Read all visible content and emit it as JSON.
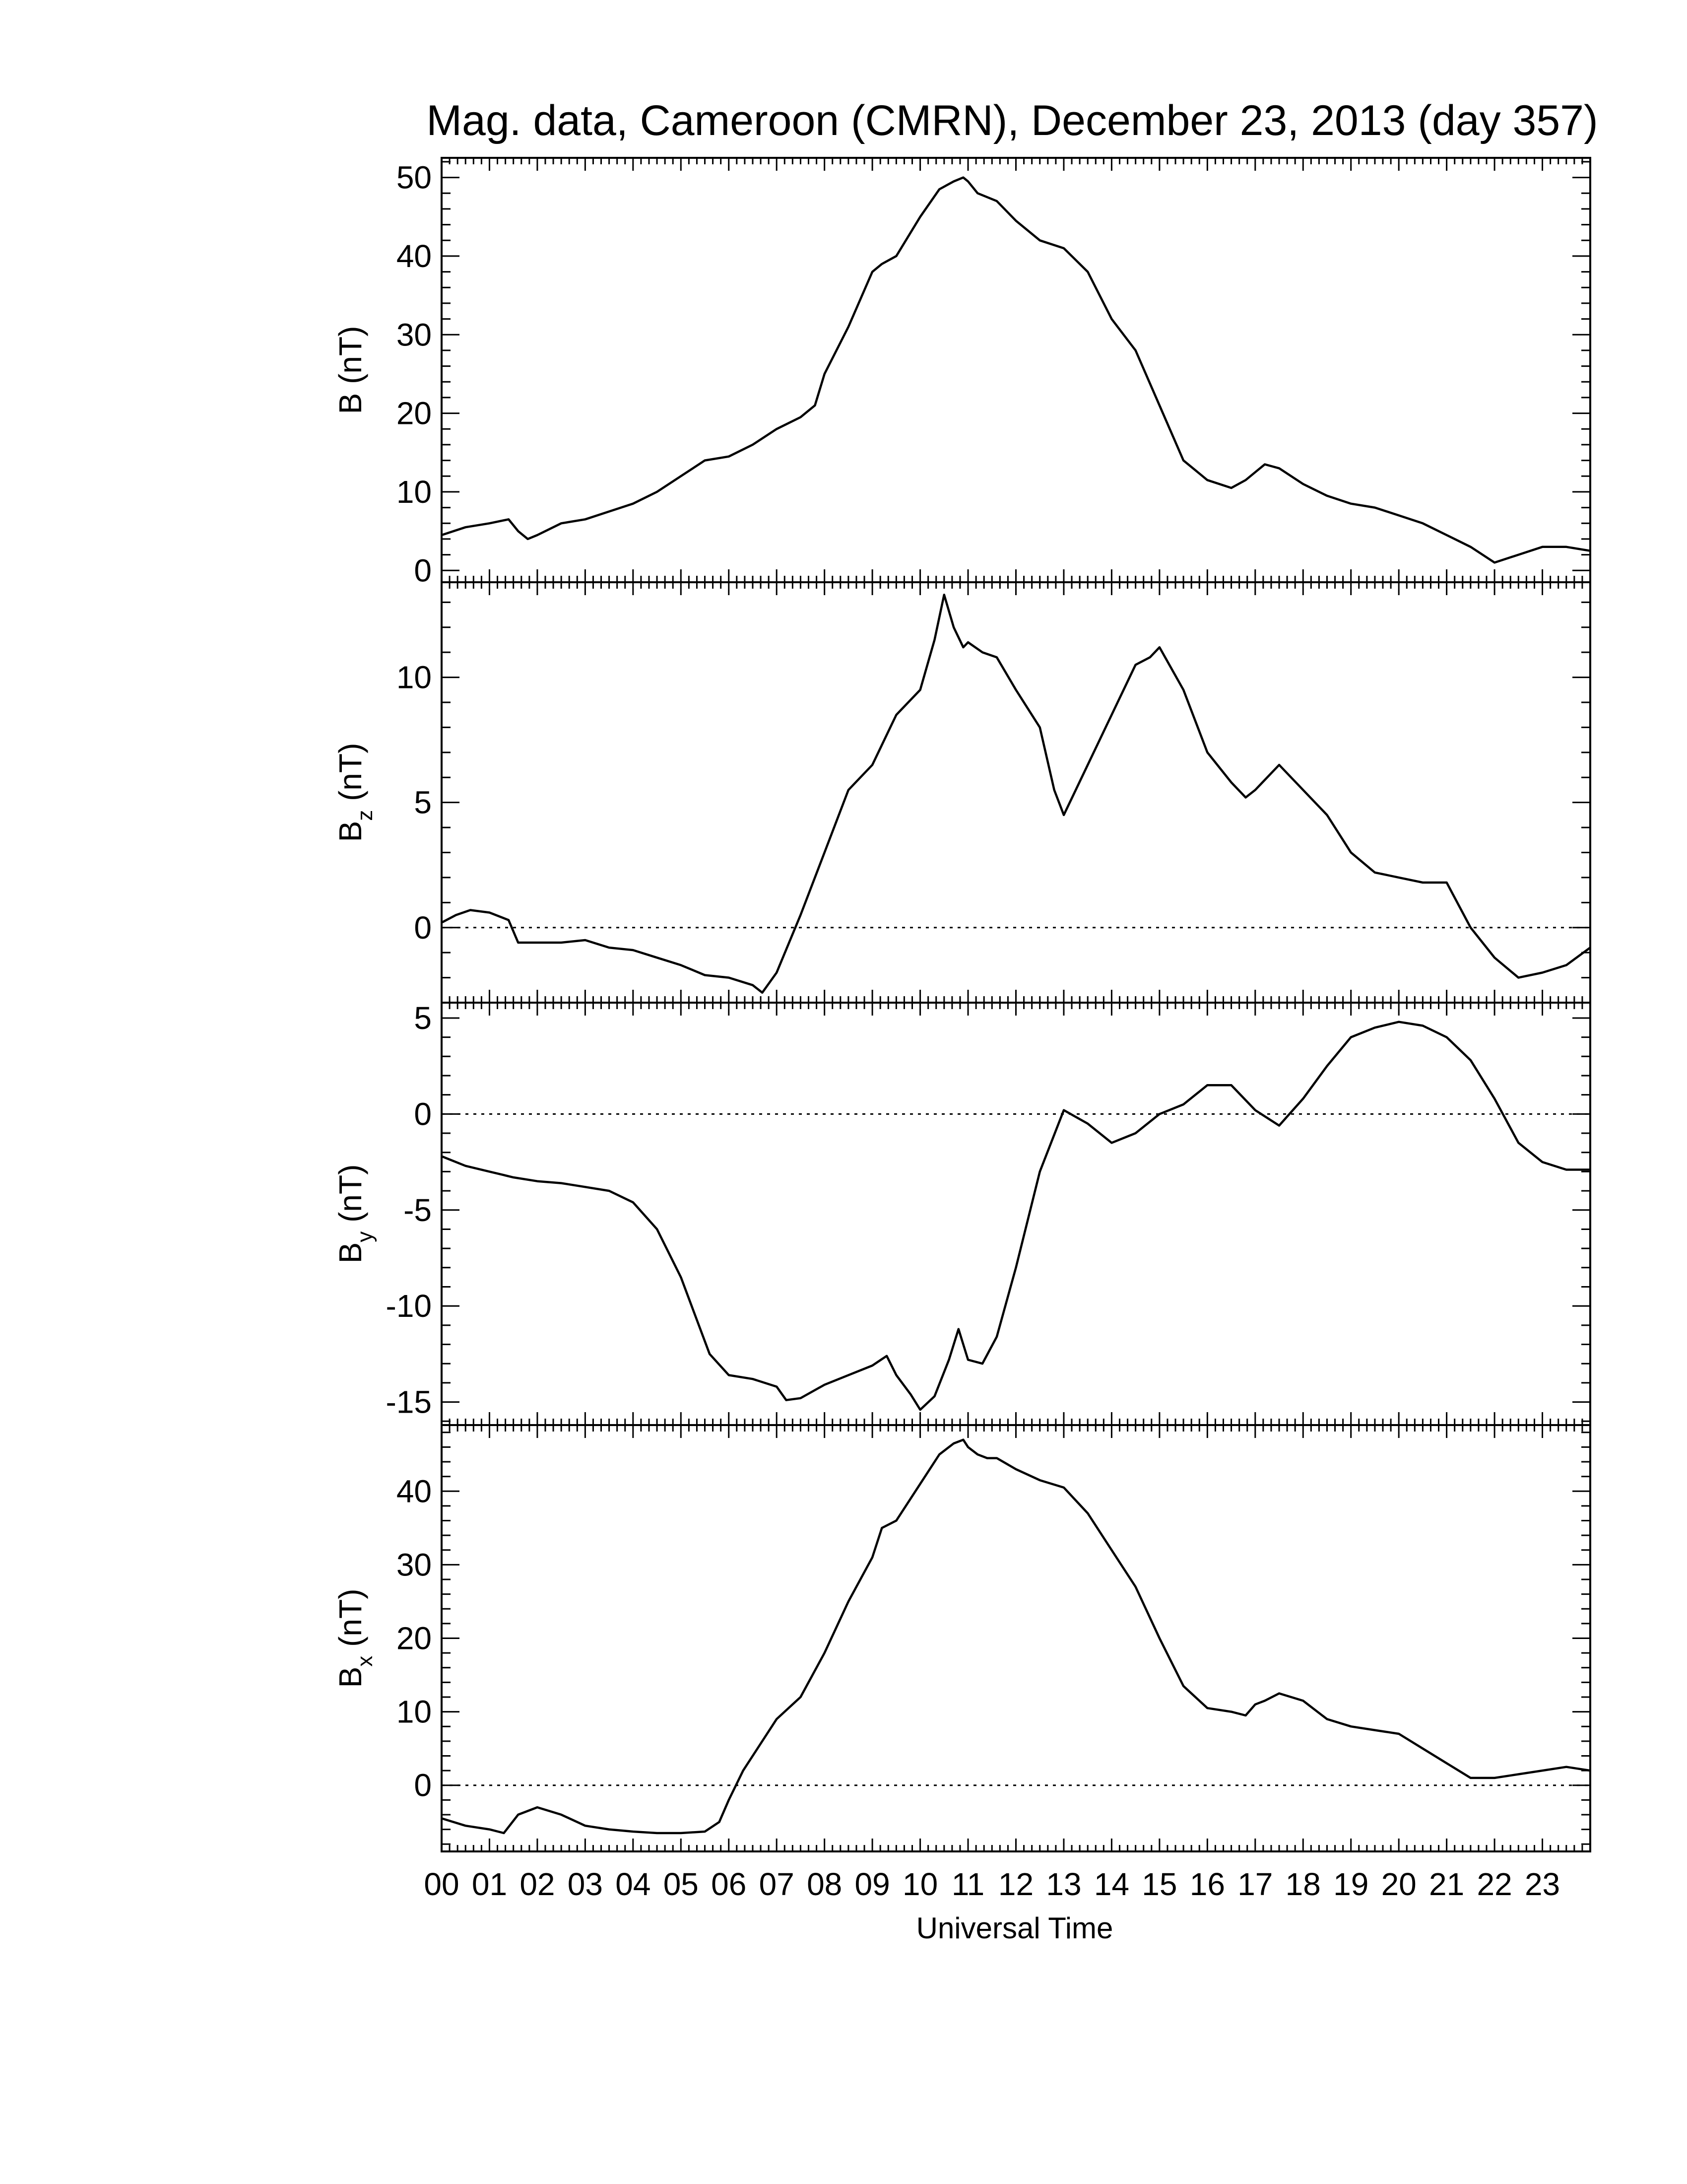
{
  "title": "Mag. data, Cameroon (CMRN), December 23, 2013 (day 357)",
  "xlabel": "Universal Time",
  "x_tick_labels": [
    "00",
    "01",
    "02",
    "03",
    "04",
    "05",
    "06",
    "07",
    "08",
    "09",
    "10",
    "11",
    "12",
    "13",
    "14",
    "15",
    "16",
    "17",
    "18",
    "19",
    "20",
    "21",
    "22",
    "23"
  ],
  "colors": {
    "line": "#000000",
    "background": "#ffffff"
  },
  "chart_data": [
    {
      "type": "line",
      "ylabel": "B (nT)",
      "ylabel_main": "B",
      "ylabel_sub": "",
      "ylabel_unit": " (nT)",
      "xlim": [
        0,
        24
      ],
      "ylim": [
        -1.5,
        52.5
      ],
      "yticks": [
        0,
        10,
        20,
        30,
        40,
        50
      ],
      "zero_line": false,
      "x": [
        0,
        0.5,
        1,
        1.4,
        1.6,
        1.8,
        2,
        2.5,
        3,
        3.5,
        4,
        4.5,
        5,
        5.5,
        6,
        6.5,
        7,
        7.5,
        7.8,
        8,
        8.5,
        9,
        9.2,
        9.5,
        10,
        10.4,
        10.7,
        10.9,
        11,
        11.2,
        11.4,
        11.6,
        12,
        12.5,
        13,
        13.5,
        14,
        14.5,
        15,
        15.5,
        16,
        16.5,
        16.8,
        17,
        17.2,
        17.5,
        18,
        18.5,
        19,
        19.5,
        20,
        20.5,
        21,
        21.5,
        22,
        22.5,
        23,
        23.5,
        24
      ],
      "values": [
        4.5,
        5.5,
        6,
        6.5,
        5,
        4,
        4.5,
        6,
        6.5,
        7.5,
        8.5,
        10,
        12,
        14,
        14.5,
        16,
        18,
        19.5,
        21,
        25,
        31,
        38,
        39,
        40,
        45,
        48.5,
        49.5,
        50,
        49.5,
        48,
        47.5,
        47,
        44.5,
        42,
        41,
        38,
        32,
        28,
        21,
        14,
        11.5,
        10.5,
        11.5,
        12.5,
        13.5,
        13,
        11,
        9.5,
        8.5,
        8,
        7,
        6,
        4.5,
        3,
        1,
        2,
        3,
        3,
        2.5
      ]
    },
    {
      "type": "line",
      "ylabel": "Bz (nT)",
      "ylabel_main": "B",
      "ylabel_sub": "z",
      "ylabel_unit": " (nT)",
      "xlim": [
        0,
        24
      ],
      "ylim": [
        -3,
        13.8
      ],
      "yticks": [
        0,
        5,
        10
      ],
      "zero_line": true,
      "x": [
        0,
        0.3,
        0.6,
        1,
        1.4,
        1.6,
        2,
        2.5,
        3,
        3.5,
        4,
        4.5,
        5,
        5.5,
        6,
        6.5,
        6.7,
        7,
        7.5,
        8,
        8.5,
        9,
        9.5,
        10,
        10.3,
        10.5,
        10.7,
        10.9,
        11,
        11.3,
        11.6,
        12,
        12.5,
        12.8,
        13,
        13.5,
        14,
        14.5,
        14.8,
        15,
        15.5,
        16,
        16.5,
        16.8,
        17,
        17.5,
        18,
        18.5,
        19,
        19.5,
        20,
        20.5,
        21,
        21.5,
        22,
        22.5,
        23,
        23.5,
        24
      ],
      "values": [
        0.2,
        0.5,
        0.7,
        0.6,
        0.3,
        -0.6,
        -0.6,
        -0.6,
        -0.5,
        -0.8,
        -0.9,
        -1.2,
        -1.5,
        -1.9,
        -2.0,
        -2.3,
        -2.6,
        -1.8,
        0.5,
        3,
        5.5,
        6.5,
        8.5,
        9.5,
        11.5,
        13.3,
        12,
        11.2,
        11.4,
        11,
        10.8,
        9.5,
        8,
        5.5,
        4.5,
        6.5,
        8.5,
        10.5,
        10.8,
        11.2,
        9.5,
        7,
        5.8,
        5.2,
        5.5,
        6.5,
        5.5,
        4.5,
        3,
        2.2,
        2,
        1.8,
        1.8,
        0,
        -1.2,
        -2,
        -1.8,
        -1.5,
        -0.8
      ]
    },
    {
      "type": "line",
      "ylabel": "By (nT)",
      "ylabel_main": "B",
      "ylabel_sub": "y",
      "ylabel_unit": " (nT)",
      "xlim": [
        0,
        24
      ],
      "ylim": [
        -16.2,
        5.8
      ],
      "yticks": [
        -15,
        -10,
        -5,
        0,
        5
      ],
      "zero_line": true,
      "x": [
        0,
        0.5,
        1,
        1.5,
        2,
        2.5,
        3,
        3.5,
        4,
        4.5,
        5,
        5.3,
        5.6,
        6,
        6.5,
        7,
        7.2,
        7.5,
        8,
        8.5,
        9,
        9.3,
        9.5,
        9.8,
        10,
        10.3,
        10.6,
        10.8,
        11,
        11.3,
        11.6,
        12,
        12.5,
        13,
        13.5,
        14,
        14.5,
        15,
        15.5,
        16,
        16.5,
        17,
        17.5,
        18,
        18.5,
        19,
        19.5,
        20,
        20.5,
        21,
        21.5,
        22,
        22.5,
        23,
        23.5,
        24
      ],
      "values": [
        -2.2,
        -2.7,
        -3.0,
        -3.3,
        -3.5,
        -3.6,
        -3.8,
        -4.0,
        -4.6,
        -6,
        -8.5,
        -10.5,
        -12.5,
        -13.6,
        -13.8,
        -14.2,
        -14.9,
        -14.8,
        -14.1,
        -13.6,
        -13.1,
        -12.6,
        -13.6,
        -14.6,
        -15.4,
        -14.7,
        -12.8,
        -11.2,
        -12.8,
        -13.0,
        -11.6,
        -8,
        -3,
        0.2,
        -0.5,
        -1.5,
        -1.0,
        0,
        0.5,
        1.5,
        1.5,
        0.2,
        -0.6,
        0.8,
        2.5,
        4.0,
        4.5,
        4.8,
        4.6,
        4.0,
        2.8,
        0.8,
        -1.5,
        -2.5,
        -2.9,
        -2.9
      ]
    },
    {
      "type": "line",
      "ylabel": "Bx (nT)",
      "ylabel_main": "B",
      "ylabel_sub": "x",
      "ylabel_unit": " (nT)",
      "xlim": [
        0,
        24
      ],
      "ylim": [
        -9,
        49
      ],
      "yticks": [
        0,
        10,
        20,
        30,
        40
      ],
      "zero_line": true,
      "x": [
        0,
        0.5,
        1,
        1.3,
        1.6,
        2,
        2.5,
        3,
        3.5,
        4,
        4.5,
        5,
        5.5,
        5.8,
        6,
        6.3,
        6.6,
        7,
        7.5,
        8,
        8.5,
        9,
        9.2,
        9.5,
        10,
        10.4,
        10.7,
        10.9,
        11,
        11.2,
        11.4,
        11.6,
        12,
        12.5,
        13,
        13.5,
        14,
        14.5,
        15,
        15.5,
        16,
        16.5,
        16.8,
        17,
        17.2,
        17.5,
        18,
        18.5,
        19,
        19.5,
        20,
        20.5,
        21,
        21.5,
        22,
        22.5,
        23,
        23.5,
        24
      ],
      "values": [
        -4.5,
        -5.5,
        -6,
        -6.5,
        -4,
        -3,
        -4,
        -5.5,
        -6,
        -6.3,
        -6.5,
        -6.5,
        -6.3,
        -5,
        -2,
        2,
        5,
        9,
        12,
        18,
        25,
        31,
        35,
        36,
        41,
        45,
        46.5,
        47,
        46,
        45,
        44.5,
        44.5,
        43,
        41.5,
        40.5,
        37,
        32,
        27,
        20,
        13.5,
        10.5,
        10,
        9.5,
        11,
        11.5,
        12.5,
        11.5,
        9,
        8,
        7.5,
        7,
        5,
        3,
        1,
        1,
        1.5,
        2,
        2.5,
        2
      ]
    }
  ]
}
